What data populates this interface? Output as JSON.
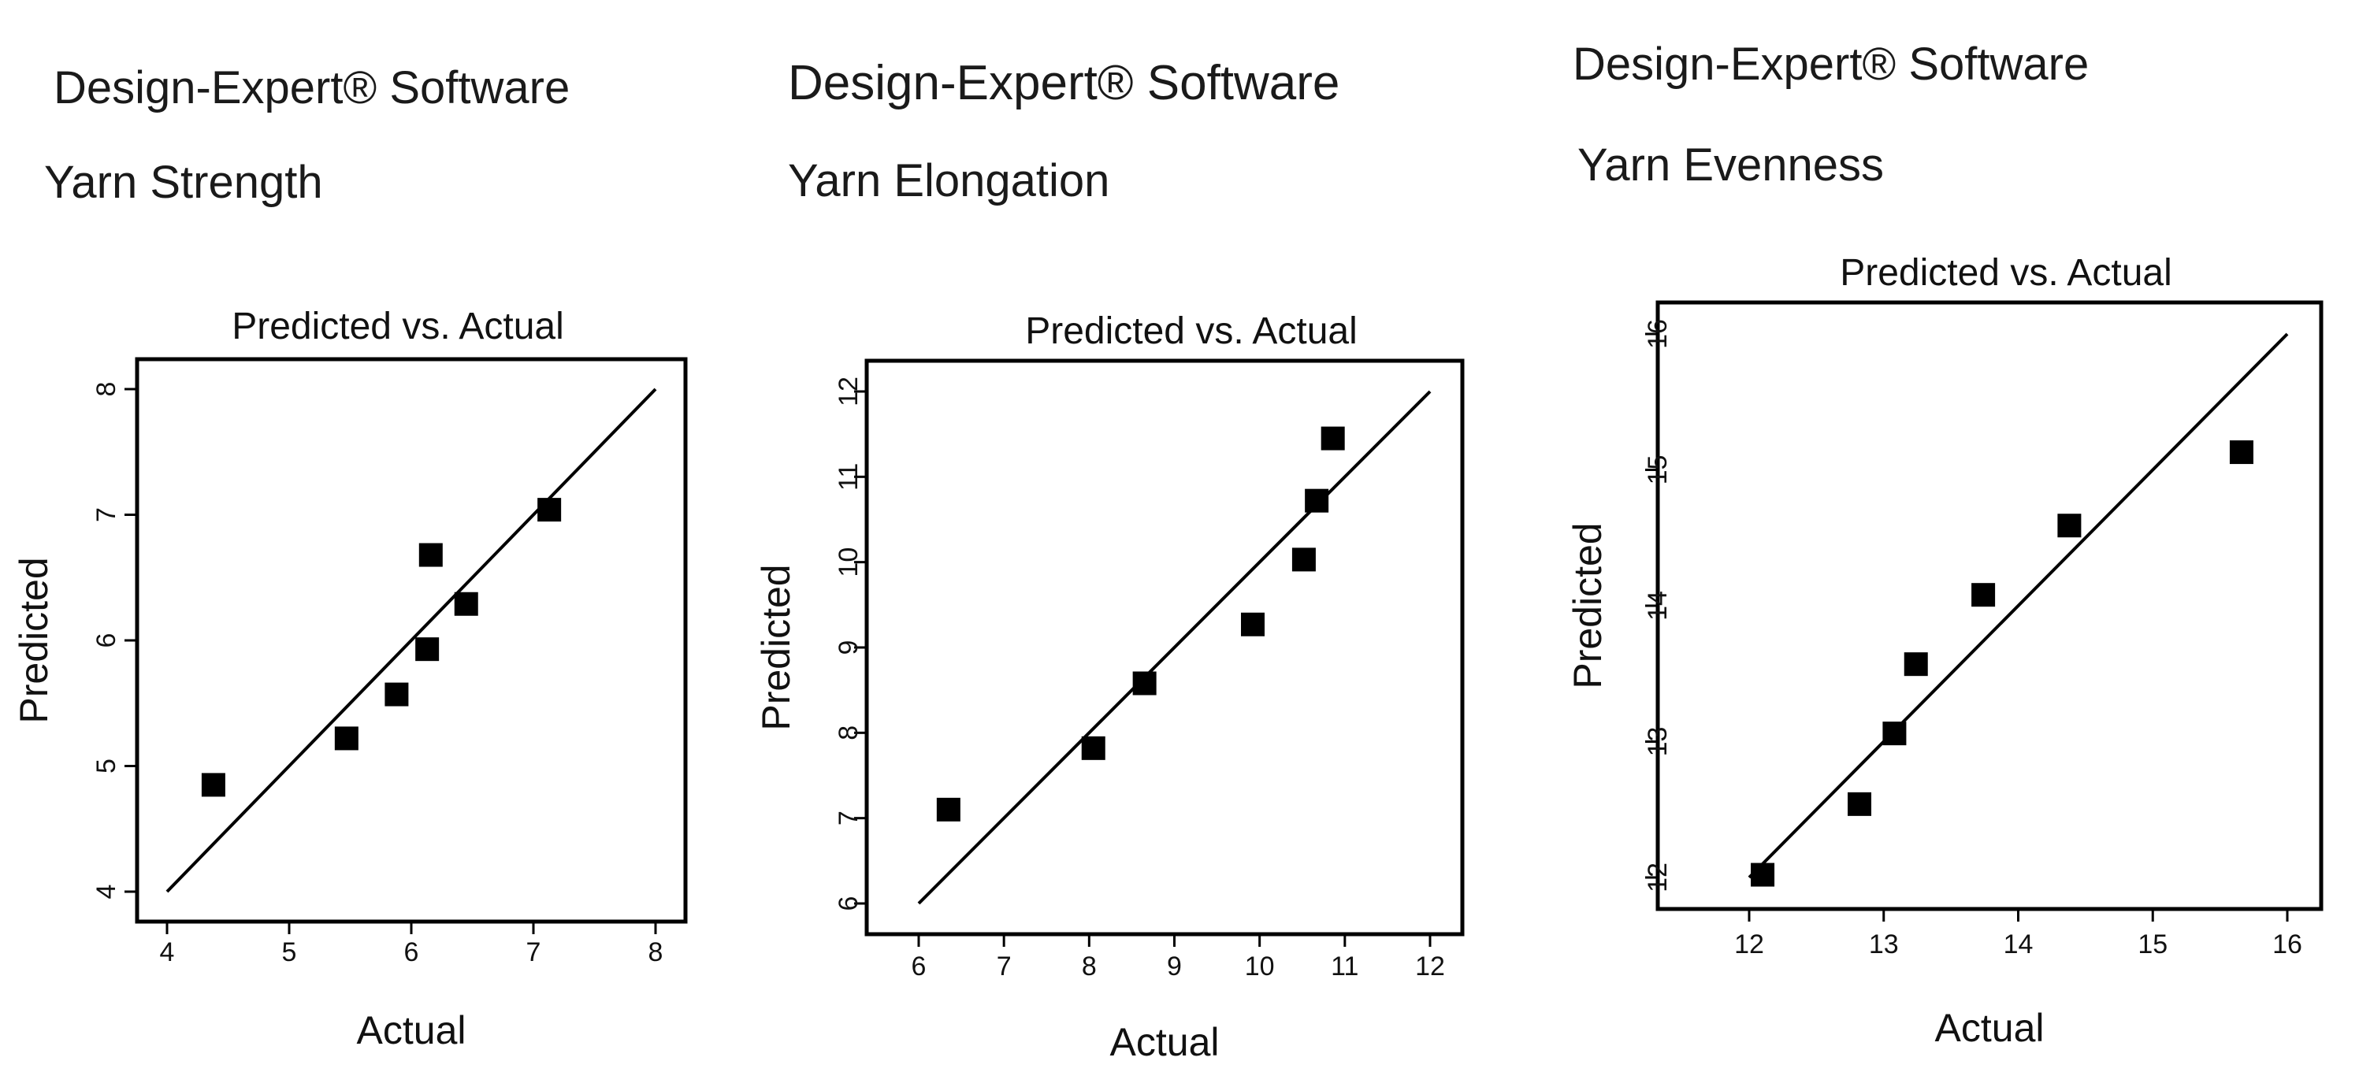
{
  "panels": [
    {
      "software": "Design-Expert® Software",
      "response": "Yarn Strength"
    },
    {
      "software": "Design-Expert® Software",
      "response": "Yarn Elongation"
    },
    {
      "software": "Design-Expert® Software",
      "response": "Yarn Evenness"
    }
  ],
  "chart_data": [
    {
      "type": "scatter",
      "title": "Predicted vs. Actual",
      "xlabel": "Actual",
      "ylabel": "Predicted",
      "xlim": [
        4,
        8
      ],
      "ylim": [
        4,
        8
      ],
      "xticks": [
        4,
        5,
        6,
        7,
        8
      ],
      "yticks": [
        4,
        5,
        6,
        7,
        8
      ],
      "grid": false,
      "reference_line": {
        "x": [
          4,
          8
        ],
        "y": [
          4,
          8
        ]
      },
      "marker_color": "#000000",
      "points": [
        {
          "x": 4.38,
          "y": 4.85
        },
        {
          "x": 5.47,
          "y": 5.22
        },
        {
          "x": 5.88,
          "y": 5.57
        },
        {
          "x": 6.13,
          "y": 5.93
        },
        {
          "x": 6.16,
          "y": 6.68
        },
        {
          "x": 6.45,
          "y": 6.29
        },
        {
          "x": 7.13,
          "y": 7.04
        }
      ]
    },
    {
      "type": "scatter",
      "title": "Predicted vs. Actual",
      "xlabel": "Actual",
      "ylabel": "Predicted",
      "xlim": [
        6,
        12
      ],
      "ylim": [
        6,
        12
      ],
      "xticks": [
        6,
        7,
        8,
        9,
        10,
        11,
        12
      ],
      "yticks": [
        6,
        7,
        8,
        9,
        10,
        11,
        12
      ],
      "grid": false,
      "reference_line": {
        "x": [
          6,
          12
        ],
        "y": [
          6,
          12
        ]
      },
      "marker_color": "#000000",
      "points": [
        {
          "x": 6.35,
          "y": 7.1
        },
        {
          "x": 8.05,
          "y": 7.82
        },
        {
          "x": 8.65,
          "y": 8.58
        },
        {
          "x": 9.92,
          "y": 9.27
        },
        {
          "x": 10.52,
          "y": 10.03
        },
        {
          "x": 10.67,
          "y": 10.72
        },
        {
          "x": 10.86,
          "y": 11.45
        }
      ]
    },
    {
      "type": "scatter",
      "title": "Predicted vs. Actual",
      "xlabel": "Actual",
      "ylabel": "Predicted",
      "xlim": [
        12,
        16
      ],
      "ylim": [
        12,
        16
      ],
      "xticks": [
        12,
        13,
        14,
        15,
        16
      ],
      "yticks": [
        12,
        13,
        14,
        15,
        16
      ],
      "grid": false,
      "reference_line": {
        "x": [
          12,
          16
        ],
        "y": [
          12,
          16
        ]
      },
      "marker_color": "#000000",
      "points": [
        {
          "x": 12.1,
          "y": 12.02
        },
        {
          "x": 12.82,
          "y": 12.54
        },
        {
          "x": 13.08,
          "y": 13.06
        },
        {
          "x": 13.24,
          "y": 13.57
        },
        {
          "x": 13.74,
          "y": 14.08
        },
        {
          "x": 14.38,
          "y": 14.59
        },
        {
          "x": 15.66,
          "y": 15.13
        }
      ]
    }
  ]
}
